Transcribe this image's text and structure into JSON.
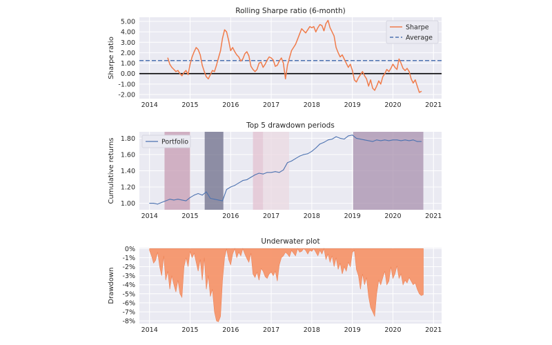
{
  "colors": {
    "panel_bg": "#EAEAF2",
    "grid": "#FFFFFF",
    "sharpe": "#F07B4A",
    "average": "#4C72B0",
    "zero": "#000000",
    "portfolio": "#4C72B0",
    "underwater": "#F6966B"
  },
  "chart_data": [
    {
      "type": "line",
      "title": "Rolling Sharpe ratio (6-month)",
      "xlabel": "",
      "ylabel": "Sharpe ratio",
      "x_ticks": [
        "2014",
        "2015",
        "2016",
        "2017",
        "2018",
        "2019",
        "2020",
        "2021"
      ],
      "y_ticks": [
        "5.00",
        "4.00",
        "3.00",
        "2.00",
        "1.00",
        "0.00",
        "-1.00",
        "-2.00"
      ],
      "xlim": [
        2013.75,
        2021.2
      ],
      "ylim": [
        -2.4,
        5.4
      ],
      "grid": true,
      "legend": {
        "position": "top-right",
        "entries": [
          "Sharpe",
          "Average"
        ]
      },
      "average": 1.25,
      "zero_line": 0,
      "series": [
        {
          "name": "Sharpe",
          "x": [
            2014.45,
            2014.5,
            2014.55,
            2014.6,
            2014.65,
            2014.7,
            2014.75,
            2014.8,
            2014.85,
            2014.9,
            2014.95,
            2015.0,
            2015.05,
            2015.1,
            2015.15,
            2015.2,
            2015.25,
            2015.3,
            2015.35,
            2015.4,
            2015.45,
            2015.5,
            2015.55,
            2015.6,
            2015.65,
            2015.7,
            2015.75,
            2015.8,
            2015.85,
            2015.9,
            2015.95,
            2016.0,
            2016.05,
            2016.1,
            2016.15,
            2016.2,
            2016.25,
            2016.3,
            2016.35,
            2016.4,
            2016.45,
            2016.5,
            2016.55,
            2016.6,
            2016.65,
            2016.7,
            2016.75,
            2016.8,
            2016.85,
            2016.9,
            2016.95,
            2017.0,
            2017.05,
            2017.1,
            2017.15,
            2017.2,
            2017.25,
            2017.3,
            2017.35,
            2017.4,
            2017.45,
            2017.5,
            2017.55,
            2017.6,
            2017.65,
            2017.7,
            2017.75,
            2017.8,
            2017.85,
            2017.9,
            2017.95,
            2018.0,
            2018.05,
            2018.1,
            2018.15,
            2018.2,
            2018.25,
            2018.3,
            2018.35,
            2018.4,
            2018.45,
            2018.5,
            2018.55,
            2018.6,
            2018.65,
            2018.7,
            2018.75,
            2018.8,
            2018.85,
            2018.9,
            2018.95,
            2019.0,
            2019.05,
            2019.1,
            2019.15,
            2019.2,
            2019.25,
            2019.3,
            2019.35,
            2019.4,
            2019.45,
            2019.5,
            2019.55,
            2019.6,
            2019.65,
            2019.7,
            2019.75,
            2019.8,
            2019.85,
            2019.9,
            2019.95,
            2020.0,
            2020.05,
            2020.1,
            2020.15,
            2020.2,
            2020.25,
            2020.3,
            2020.35,
            2020.4,
            2020.45,
            2020.5,
            2020.55,
            2020.6,
            2020.65,
            2020.7
          ],
          "values": [
            1.5,
            0.9,
            0.6,
            0.4,
            0.2,
            0.3,
            0.0,
            -0.2,
            0.1,
            0.3,
            -0.1,
            0.9,
            1.6,
            2.1,
            2.5,
            2.3,
            1.8,
            0.8,
            0.2,
            -0.3,
            -0.5,
            -0.1,
            0.3,
            0.2,
            0.8,
            1.5,
            2.2,
            3.4,
            4.2,
            4.0,
            3.2,
            2.2,
            2.5,
            2.1,
            1.8,
            1.6,
            1.2,
            1.4,
            1.9,
            2.1,
            1.7,
            0.7,
            0.4,
            0.2,
            0.4,
            1.0,
            1.1,
            0.6,
            0.9,
            1.3,
            1.6,
            1.5,
            1.3,
            0.7,
            0.8,
            1.2,
            1.5,
            1.0,
            -0.5,
            0.8,
            1.5,
            2.2,
            2.5,
            2.8,
            3.3,
            3.8,
            4.3,
            4.1,
            3.9,
            4.2,
            4.5,
            4.4,
            4.5,
            4.0,
            4.4,
            4.7,
            4.6,
            4.1,
            4.8,
            5.1,
            4.4,
            4.0,
            3.6,
            2.5,
            2.0,
            1.6,
            1.8,
            1.4,
            1.0,
            0.6,
            0.9,
            0.3,
            -0.6,
            -0.8,
            -0.4,
            -0.1,
            0.2,
            -0.2,
            -0.5,
            -1.2,
            -0.6,
            -1.4,
            -1.6,
            -1.2,
            -0.7,
            -1.0,
            -0.3,
            0.0,
            0.4,
            0.2,
            0.5,
            0.9,
            0.6,
            0.4,
            1.4,
            1.0,
            0.5,
            0.3,
            0.5,
            0.2,
            -0.5,
            -0.9,
            -0.6,
            -1.2,
            -1.8,
            -1.7
          ]
        }
      ]
    },
    {
      "type": "line",
      "title": "Top 5 drawdown periods",
      "xlabel": "",
      "ylabel": "Cumulative returns",
      "x_ticks": [
        "2014",
        "2015",
        "2016",
        "2017",
        "2018",
        "2019",
        "2020",
        "2021"
      ],
      "y_ticks": [
        "1.80",
        "1.60",
        "1.40",
        "1.20",
        "1.00"
      ],
      "xlim": [
        2013.75,
        2021.2
      ],
      "ylim": [
        0.92,
        1.88
      ],
      "grid": true,
      "legend": {
        "position": "top-left",
        "entries": [
          "Portfolio"
        ]
      },
      "drawdown_periods": [
        {
          "start": 2014.37,
          "end": 2015.0,
          "color": "#C79CB3",
          "opacity": 0.75
        },
        {
          "start": 2015.36,
          "end": 2015.82,
          "color": "#6E6E8A",
          "opacity": 0.75
        },
        {
          "start": 2016.55,
          "end": 2016.8,
          "color": "#E3C1D0",
          "opacity": 0.75
        },
        {
          "start": 2016.8,
          "end": 2017.44,
          "color": "#EBD9E1",
          "opacity": 0.75
        },
        {
          "start": 2019.02,
          "end": 2020.75,
          "color": "#A890AE",
          "opacity": 0.75
        }
      ],
      "series": [
        {
          "name": "Portfolio",
          "x": [
            2014.0,
            2014.1,
            2014.2,
            2014.3,
            2014.4,
            2014.5,
            2014.6,
            2014.7,
            2014.8,
            2014.9,
            2015.0,
            2015.1,
            2015.2,
            2015.3,
            2015.4,
            2015.5,
            2015.6,
            2015.7,
            2015.8,
            2015.9,
            2016.0,
            2016.1,
            2016.2,
            2016.3,
            2016.4,
            2016.5,
            2016.6,
            2016.7,
            2016.8,
            2016.9,
            2017.0,
            2017.1,
            2017.2,
            2017.3,
            2017.4,
            2017.5,
            2017.6,
            2017.7,
            2017.8,
            2017.9,
            2018.0,
            2018.1,
            2018.2,
            2018.3,
            2018.4,
            2018.5,
            2018.6,
            2018.7,
            2018.8,
            2018.9,
            2019.0,
            2019.1,
            2019.2,
            2019.3,
            2019.4,
            2019.5,
            2019.6,
            2019.7,
            2019.8,
            2019.9,
            2020.0,
            2020.1,
            2020.2,
            2020.3,
            2020.4,
            2020.5,
            2020.6,
            2020.7
          ],
          "values": [
            1.0,
            1.0,
            0.99,
            1.01,
            1.03,
            1.05,
            1.04,
            1.05,
            1.04,
            1.03,
            1.07,
            1.1,
            1.12,
            1.1,
            1.14,
            1.06,
            1.05,
            1.04,
            1.03,
            1.17,
            1.2,
            1.22,
            1.25,
            1.28,
            1.29,
            1.32,
            1.35,
            1.37,
            1.36,
            1.38,
            1.38,
            1.39,
            1.38,
            1.41,
            1.5,
            1.52,
            1.55,
            1.58,
            1.6,
            1.61,
            1.64,
            1.68,
            1.73,
            1.75,
            1.78,
            1.79,
            1.82,
            1.8,
            1.79,
            1.83,
            1.84,
            1.8,
            1.79,
            1.78,
            1.77,
            1.76,
            1.78,
            1.77,
            1.78,
            1.77,
            1.78,
            1.78,
            1.77,
            1.78,
            1.77,
            1.78,
            1.76,
            1.76
          ]
        }
      ]
    },
    {
      "type": "area",
      "title": "Underwater plot",
      "xlabel": "",
      "ylabel": "Drawdown",
      "x_ticks": [
        "2014",
        "2015",
        "2016",
        "2017",
        "2018",
        "2019",
        "2020",
        "2021"
      ],
      "y_ticks": [
        "0%",
        "-1%",
        "-2%",
        "-3%",
        "-4%",
        "-5%",
        "-6%",
        "-7%",
        "-8%"
      ],
      "xlim": [
        2013.75,
        2021.2
      ],
      "ylim": [
        -8.3,
        0.1
      ],
      "grid": true,
      "series": [
        {
          "name": "Drawdown",
          "x": [
            2014.0,
            2014.05,
            2014.1,
            2014.15,
            2014.2,
            2014.25,
            2014.3,
            2014.35,
            2014.4,
            2014.45,
            2014.5,
            2014.55,
            2014.6,
            2014.65,
            2014.7,
            2014.75,
            2014.8,
            2014.85,
            2014.9,
            2014.95,
            2015.0,
            2015.05,
            2015.1,
            2015.15,
            2015.2,
            2015.25,
            2015.3,
            2015.35,
            2015.4,
            2015.45,
            2015.5,
            2015.55,
            2015.6,
            2015.65,
            2015.7,
            2015.75,
            2015.8,
            2015.85,
            2015.9,
            2015.95,
            2016.0,
            2016.05,
            2016.1,
            2016.15,
            2016.2,
            2016.25,
            2016.3,
            2016.35,
            2016.4,
            2016.45,
            2016.5,
            2016.55,
            2016.6,
            2016.65,
            2016.7,
            2016.75,
            2016.8,
            2016.85,
            2016.9,
            2016.95,
            2017.0,
            2017.05,
            2017.1,
            2017.15,
            2017.2,
            2017.25,
            2017.3,
            2017.35,
            2017.4,
            2017.45,
            2017.5,
            2017.55,
            2017.6,
            2017.65,
            2017.7,
            2017.75,
            2017.8,
            2017.85,
            2017.9,
            2017.95,
            2018.0,
            2018.05,
            2018.1,
            2018.15,
            2018.2,
            2018.25,
            2018.3,
            2018.35,
            2018.4,
            2018.45,
            2018.5,
            2018.55,
            2018.6,
            2018.65,
            2018.7,
            2018.75,
            2018.8,
            2018.85,
            2018.9,
            2018.95,
            2019.0,
            2019.05,
            2019.1,
            2019.15,
            2019.2,
            2019.25,
            2019.3,
            2019.35,
            2019.4,
            2019.45,
            2019.5,
            2019.55,
            2019.6,
            2019.65,
            2019.7,
            2019.75,
            2019.8,
            2019.85,
            2019.9,
            2019.95,
            2020.0,
            2020.05,
            2020.1,
            2020.15,
            2020.2,
            2020.25,
            2020.3,
            2020.35,
            2020.4,
            2020.45,
            2020.5,
            2020.55,
            2020.6,
            2020.65,
            2020.7,
            2020.75
          ],
          "values": [
            -0.2,
            -0.8,
            -1.6,
            -1.3,
            -0.4,
            -2.0,
            -3.0,
            -0.8,
            -3.5,
            -2.5,
            -4.5,
            -3.0,
            -4.0,
            -4.8,
            -3.5,
            -5.0,
            -5.4,
            -2.0,
            -1.0,
            -2.0,
            -0.3,
            -1.0,
            -0.5,
            -1.5,
            -2.5,
            -1.2,
            -3.5,
            -1.0,
            -4.5,
            -3.0,
            -5.3,
            -4.5,
            -7.0,
            -8.0,
            -8.1,
            -7.5,
            -3.5,
            -1.0,
            0.0,
            -1.2,
            -1.8,
            -0.6,
            0.0,
            -1.0,
            -0.4,
            -0.8,
            0.0,
            -0.6,
            -1.1,
            -1.5,
            -0.5,
            -2.8,
            -3.2,
            -2.6,
            -3.5,
            -2.2,
            -2.5,
            -3.1,
            -3.3,
            -2.8,
            -2.6,
            -3.0,
            -2.5,
            -3.6,
            -1.8,
            -1.0,
            -0.8,
            -0.4,
            -0.6,
            -0.9,
            -0.2,
            -0.5,
            -0.8,
            0.0,
            -0.4,
            -0.3,
            0.0,
            -0.2,
            -0.6,
            -0.2,
            -0.3,
            0.0,
            -0.4,
            -0.8,
            -0.2,
            -0.6,
            0.0,
            -1.2,
            -0.6,
            -1.5,
            -0.8,
            -2.0,
            -1.0,
            -2.3,
            -1.6,
            -2.8,
            -2.0,
            -2.5,
            -1.5,
            -2.0,
            -0.4,
            -0.2,
            -2.3,
            -3.0,
            -4.5,
            -2.8,
            -4.0,
            -3.2,
            -5.3,
            -6.5,
            -7.0,
            -7.5,
            -5.0,
            -3.5,
            -4.0,
            -3.2,
            -2.5,
            -4.0,
            -3.6,
            -2.0,
            -3.3,
            -2.8,
            -1.9,
            -3.3,
            -2.8,
            -4.0,
            -3.5,
            -3.8,
            -3.2,
            -3.6,
            -4.0,
            -3.8,
            -4.5,
            -5.0,
            -5.2,
            -5.1
          ]
        }
      ]
    }
  ]
}
